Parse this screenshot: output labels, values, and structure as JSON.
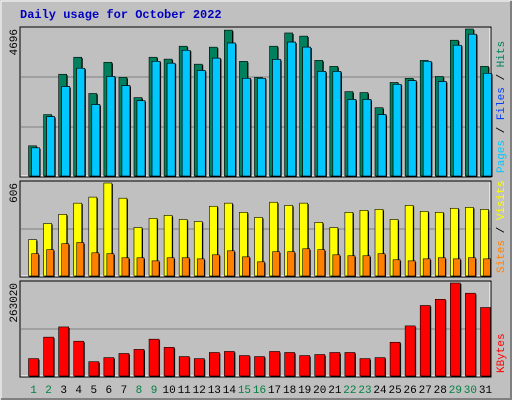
{
  "chart_data": [
    {
      "type": "bar",
      "title": "Daily usage for October 2022",
      "ylim": [
        0,
        4696
      ],
      "yticks": [
        4696
      ],
      "series": [
        {
          "name": "Hits",
          "color": "#00805c",
          "values": [
            990,
            1980,
            3260,
            3800,
            2650,
            3640,
            3160,
            2520,
            3800,
            3740,
            4150,
            3580,
            4120,
            4660,
            3670,
            3160,
            4150,
            4570,
            4470,
            3700,
            3510,
            2710,
            2680,
            2200,
            3000,
            3130,
            3700,
            3190,
            4340,
            4696,
            3510
          ]
        },
        {
          "name": "Files",
          "color": "#0040ff",
          "values": [
            925,
            1915,
            2870,
            3450,
            2300,
            3190,
            2900,
            2420,
            3670,
            3610,
            4020,
            3380,
            3770,
            4250,
            3130,
            3130,
            3730,
            4280,
            4120,
            3350,
            3350,
            2460,
            2460,
            1980,
            2940,
            3060,
            3670,
            3030,
            4180,
            4530,
            3290
          ]
        },
        {
          "name": "Pages",
          "color": "#00c8ff",
          "values": [
            925,
            1915,
            2870,
            3450,
            2300,
            3190,
            2900,
            2420,
            3670,
            3610,
            4020,
            3380,
            3770,
            4250,
            3130,
            3130,
            3730,
            4280,
            4120,
            3350,
            3350,
            2460,
            2460,
            1980,
            2940,
            3060,
            3670,
            3030,
            4180,
            4530,
            3290
          ]
        }
      ]
    },
    {
      "type": "bar",
      "ylim": [
        0,
        606
      ],
      "yticks": [
        606
      ],
      "series": [
        {
          "name": "Visits",
          "color": "#ffff00",
          "values": [
            241,
            345,
            404,
            476,
            515,
            606,
            508,
            319,
            378,
            397,
            371,
            358,
            456,
            476,
            417,
            384,
            482,
            462,
            476,
            352,
            319,
            417,
            430,
            436,
            371,
            462,
            423,
            417,
            443,
            449,
            436
          ]
        },
        {
          "name": "Sites",
          "color": "#ff8000",
          "values": [
            150,
            176,
            215,
            222,
            156,
            150,
            124,
            124,
            104,
            124,
            124,
            117,
            143,
            169,
            130,
            98,
            163,
            163,
            182,
            176,
            143,
            137,
            137,
            150,
            111,
            104,
            117,
            124,
            117,
            124,
            117
          ]
        }
      ]
    },
    {
      "type": "bar",
      "ylim": [
        0,
        263020
      ],
      "yticks": [
        263020
      ],
      "categories": [
        "1",
        "2",
        "3",
        "4",
        "5",
        "6",
        "7",
        "8",
        "9",
        "10",
        "11",
        "12",
        "13",
        "14",
        "15",
        "16",
        "17",
        "18",
        "19",
        "20",
        "21",
        "22",
        "23",
        "24",
        "25",
        "26",
        "27",
        "28",
        "29",
        "30",
        "31"
      ],
      "label_colors": [
        "#008040",
        "#008040",
        "#000000",
        "#000000",
        "#000000",
        "#000000",
        "#000000",
        "#008040",
        "#008040",
        "#000000",
        "#000000",
        "#000000",
        "#000000",
        "#000000",
        "#008040",
        "#008040",
        "#000000",
        "#000000",
        "#000000",
        "#000000",
        "#000000",
        "#008040",
        "#008040",
        "#000000",
        "#000000",
        "#000000",
        "#000000",
        "#000000",
        "#008040",
        "#008040",
        "#000000"
      ],
      "series": [
        {
          "name": "KBytes",
          "color": "#ff0000",
          "values": [
            51500,
            111500,
            140100,
            100100,
            42900,
            54300,
            65800,
            77200,
            105800,
            82900,
            57200,
            51500,
            68600,
            71500,
            60000,
            57200,
            71500,
            68600,
            60000,
            62900,
            68600,
            68600,
            51500,
            54300,
            97200,
            143000,
            200100,
            217300,
            263020,
            234400,
            194400
          ]
        }
      ]
    }
  ]
}
